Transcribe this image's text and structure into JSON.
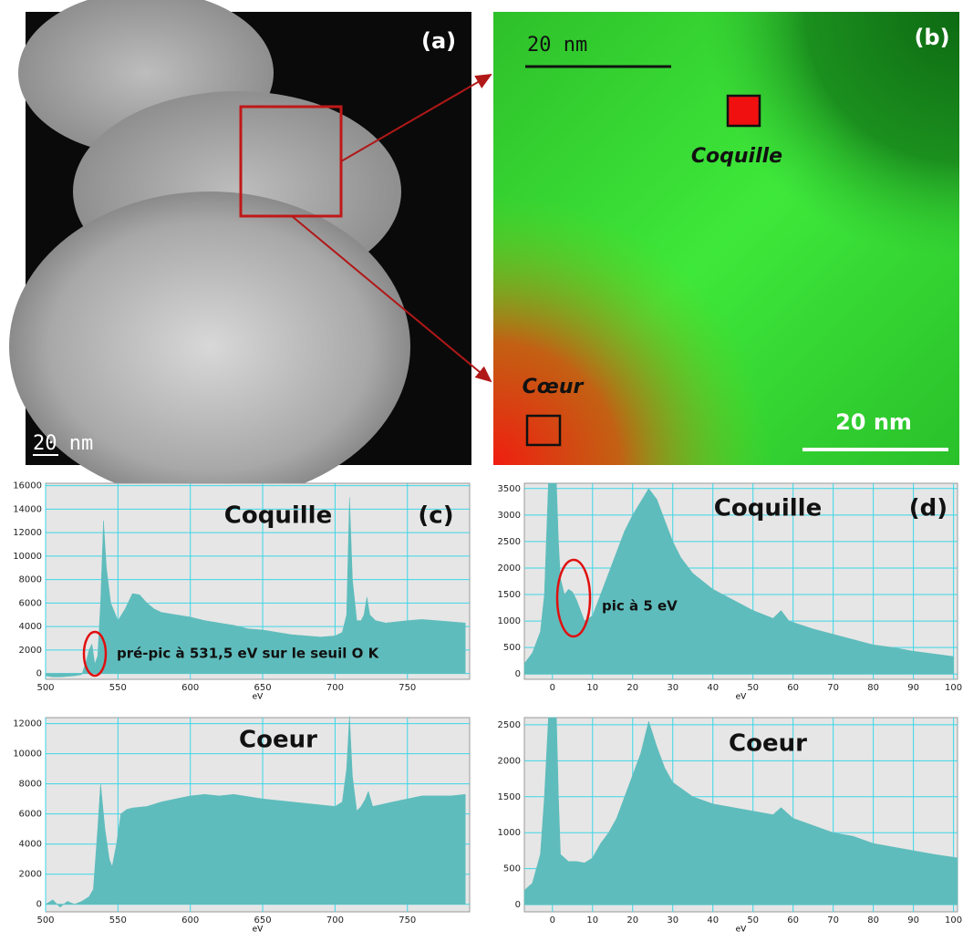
{
  "panels": {
    "a": {
      "label": "(a)",
      "scale_bar": "20 nm"
    },
    "b": {
      "label": "(b)",
      "top_scale": "20  nm",
      "shell": "Coquille",
      "core": "Cœur",
      "scale_bar": "20 nm"
    }
  },
  "chart_data": [
    {
      "type": "area",
      "title": "Coquille",
      "panel_label": "(c)",
      "annotation": "pré-pic à 531,5  eV sur le seuil O K",
      "xlabel": "eV",
      "color": "#5fbcbc",
      "grid": true,
      "x": [
        500,
        505,
        510,
        515,
        520,
        525,
        528,
        530,
        532,
        534,
        536,
        538,
        540,
        542,
        545,
        550,
        555,
        560,
        565,
        570,
        575,
        580,
        590,
        600,
        610,
        620,
        630,
        640,
        650,
        660,
        670,
        680,
        690,
        700,
        705,
        708,
        710,
        712,
        715,
        718,
        720,
        722,
        724,
        728,
        735,
        750,
        760,
        770,
        780,
        790
      ],
      "values": [
        -200,
        -300,
        -300,
        -250,
        -200,
        -100,
        1000,
        2000,
        2500,
        800,
        1500,
        6000,
        13000,
        9000,
        6000,
        4500,
        5500,
        6800,
        6700,
        6000,
        5500,
        5200,
        5000,
        4800,
        4500,
        4300,
        4100,
        3800,
        3700,
        3500,
        3300,
        3200,
        3100,
        3200,
        3500,
        5000,
        15000,
        8000,
        4500,
        4500,
        5000,
        6500,
        5000,
        4500,
        4300,
        4500,
        4600,
        4500,
        4400,
        4300
      ],
      "xlim": [
        500,
        793
      ],
      "xticks": [
        500,
        550,
        600,
        650,
        700,
        750
      ],
      "ylim": [
        -500,
        16200
      ],
      "yticks": [
        0,
        2000,
        4000,
        6000,
        8000,
        10000,
        12000,
        14000,
        16000
      ]
    },
    {
      "type": "area",
      "title": "Coeur",
      "xlabel": "eV",
      "color": "#5fbcbc",
      "grid": true,
      "x": [
        500,
        505,
        510,
        515,
        520,
        525,
        530,
        533,
        536,
        538,
        541,
        544,
        546,
        549,
        552,
        556,
        560,
        570,
        580,
        590,
        600,
        610,
        620,
        630,
        650,
        670,
        690,
        700,
        705,
        708,
        710,
        712,
        715,
        718,
        721,
        723,
        726,
        740,
        760,
        780,
        790
      ],
      "values": [
        0,
        300,
        -200,
        200,
        0,
        200,
        500,
        1000,
        5000,
        8000,
        5000,
        3000,
        2500,
        4000,
        6000,
        6300,
        6400,
        6500,
        6800,
        7000,
        7200,
        7300,
        7200,
        7300,
        7000,
        6800,
        6600,
        6500,
        6800,
        9000,
        12500,
        8500,
        6200,
        6500,
        7000,
        7500,
        6500,
        6800,
        7200,
        7200,
        7300
      ],
      "xlim": [
        500,
        793
      ],
      "xticks": [
        500,
        550,
        600,
        650,
        700,
        750
      ],
      "ylim": [
        -500,
        12400
      ],
      "yticks": [
        0,
        2000,
        4000,
        6000,
        8000,
        10000,
        12000
      ]
    },
    {
      "type": "area",
      "title": "Coquille",
      "panel_label": "(d)",
      "annotation": "pic à 5 eV",
      "xlabel": "eV",
      "color": "#5fbcbc",
      "grid": true,
      "x": [
        -7,
        -5,
        -3,
        -2,
        -1,
        0,
        1,
        1.5,
        2,
        3,
        4,
        5,
        6,
        7,
        8,
        10,
        12,
        14,
        16,
        18,
        20,
        22,
        24,
        26,
        28,
        30,
        32,
        35,
        40,
        45,
        50,
        55,
        57,
        59,
        65,
        70,
        75,
        80,
        85,
        90,
        95,
        100
      ],
      "values": [
        200,
        400,
        800,
        1500,
        3600,
        3600,
        3600,
        2500,
        1800,
        1500,
        1600,
        1550,
        1400,
        1200,
        1000,
        1100,
        1500,
        1900,
        2300,
        2700,
        3000,
        3250,
        3500,
        3300,
        2900,
        2500,
        2200,
        1900,
        1600,
        1400,
        1200,
        1050,
        1200,
        1000,
        850,
        750,
        650,
        550,
        500,
        430,
        380,
        330
      ],
      "xlim": [
        -7,
        101
      ],
      "xticks": [
        0,
        10,
        20,
        30,
        40,
        50,
        60,
        70,
        80,
        90,
        100
      ],
      "ylim": [
        -100,
        3600
      ],
      "yticks": [
        0,
        500,
        1000,
        1500,
        2000,
        2500,
        3000,
        3500
      ]
    },
    {
      "type": "area",
      "title": "Coeur",
      "xlabel": "eV",
      "color": "#5fbcbc",
      "grid": true,
      "x": [
        -7,
        -5,
        -3,
        -2,
        -1,
        0,
        1,
        1.5,
        2,
        4,
        6,
        8,
        10,
        12,
        14,
        16,
        18,
        20,
        22,
        24,
        26,
        28,
        30,
        35,
        40,
        45,
        50,
        55,
        57,
        60,
        65,
        70,
        75,
        80,
        85,
        90,
        95,
        101
      ],
      "values": [
        200,
        300,
        700,
        1500,
        2600,
        2600,
        2600,
        1500,
        700,
        600,
        600,
        580,
        650,
        850,
        1000,
        1200,
        1500,
        1800,
        2100,
        2550,
        2200,
        1900,
        1700,
        1500,
        1400,
        1350,
        1300,
        1250,
        1350,
        1200,
        1100,
        1000,
        950,
        850,
        800,
        750,
        700,
        650
      ],
      "xlim": [
        -7,
        101
      ],
      "xticks": [
        0,
        10,
        20,
        30,
        40,
        50,
        60,
        70,
        80,
        90,
        100
      ],
      "ylim": [
        -100,
        2600
      ],
      "yticks": [
        0,
        500,
        1000,
        1500,
        2000,
        2500
      ]
    }
  ]
}
